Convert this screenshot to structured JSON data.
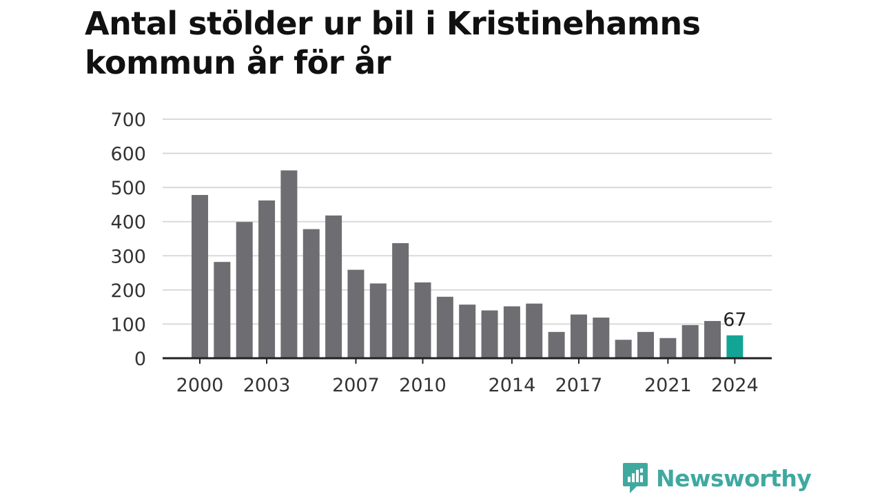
{
  "title": "Antal stölder ur bil i Kristinehamns kommun år för år",
  "brand": {
    "name": "Newsworthy",
    "icon": "newsworthy-chat-chart-icon",
    "color": "#3fa9a0"
  },
  "colors": {
    "bar": "#6e6d72",
    "highlight": "#12a596",
    "grid": "#d9d9d9",
    "axis": "#222222"
  },
  "chart_data": {
    "type": "bar",
    "title": "Antal stölder ur bil i Kristinehamns kommun år för år",
    "xlabel": "",
    "ylabel": "",
    "ylim": [
      0,
      700
    ],
    "yticks": [
      0,
      100,
      200,
      300,
      400,
      500,
      600,
      700
    ],
    "grid": true,
    "categories": [
      "2000",
      "2001",
      "2002",
      "2003",
      "2004",
      "2005",
      "2006",
      "2007",
      "2008",
      "2009",
      "2010",
      "2011",
      "2012",
      "2013",
      "2014",
      "2015",
      "2016",
      "2017",
      "2018",
      "2019",
      "2020",
      "2021",
      "2022",
      "2023",
      "2024"
    ],
    "values": [
      478,
      282,
      399,
      462,
      550,
      378,
      418,
      259,
      219,
      337,
      222,
      180,
      157,
      140,
      152,
      160,
      77,
      128,
      119,
      54,
      77,
      59,
      97,
      109,
      67
    ],
    "xtick_labels": [
      "2000",
      "2003",
      "2007",
      "2010",
      "2014",
      "2017",
      "2021",
      "2024"
    ],
    "highlight_category": "2024",
    "highlight_label": "67"
  }
}
